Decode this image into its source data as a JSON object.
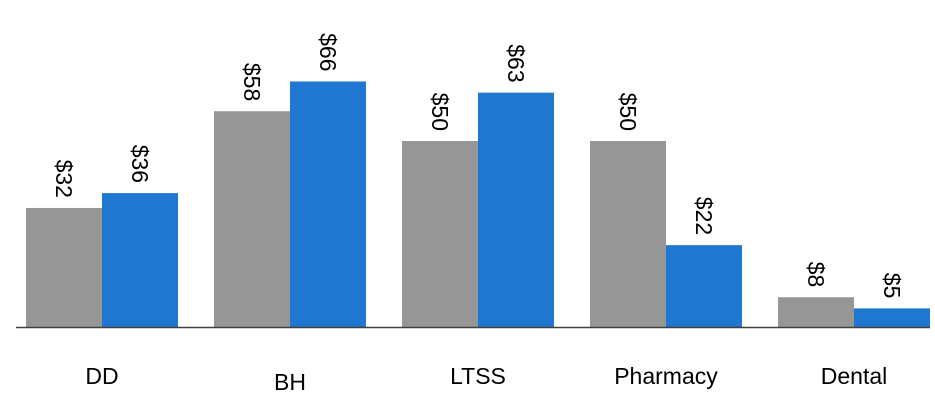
{
  "chart_data": {
    "type": "bar",
    "categories": [
      "DD",
      "BH",
      "LTSS",
      "Pharmacy",
      "Dental"
    ],
    "series": [
      {
        "values": [
          32,
          58,
          50,
          50,
          8
        ],
        "labels": [
          "$32",
          "$58",
          "$50",
          "$50",
          "$8"
        ],
        "color": "#969696"
      },
      {
        "values": [
          36,
          66,
          63,
          22,
          5
        ],
        "labels": [
          "$36",
          "$66",
          "$63",
          "$22",
          "$5"
        ],
        "color": "#1f77d0"
      }
    ],
    "title": "",
    "xlabel": "",
    "ylabel": "",
    "ylim": [
      0,
      66
    ],
    "grid": false,
    "legend": "none",
    "data_labels": "rotated 90° above bars",
    "axis_color": "#404040"
  }
}
